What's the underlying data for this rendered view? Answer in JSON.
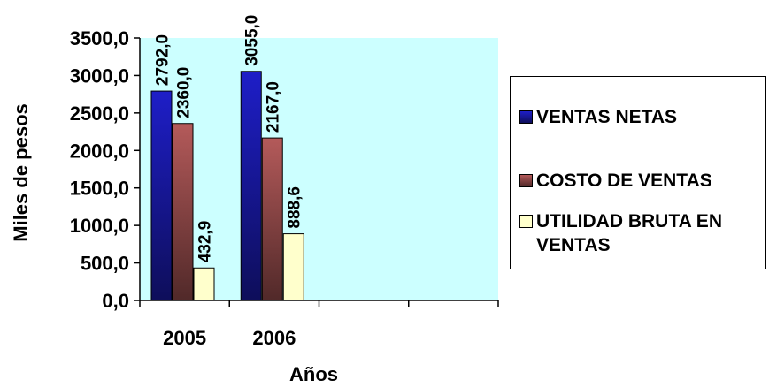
{
  "chart_data": {
    "type": "bar",
    "categories": [
      "2005",
      "2006"
    ],
    "series": [
      {
        "name": "VENTAS NETAS",
        "values": [
          2792.0,
          3055.0
        ],
        "labels": [
          "2792,0",
          "3055,0"
        ],
        "color": "#1e1ec8"
      },
      {
        "name": "COSTO DE VENTAS",
        "values": [
          2360.0,
          2167.0
        ],
        "labels": [
          "2360,0",
          "2167,0"
        ],
        "color": "#b45a5a"
      },
      {
        "name": "UTILIDAD BRUTA EN\nVENTAS",
        "values": [
          432.9,
          888.6
        ],
        "labels": [
          "432,9",
          "888,6"
        ],
        "color": "#ffffcc"
      }
    ],
    "xlabel": "Años",
    "ylabel": "Miles de pesos",
    "ylim": [
      0,
      3500
    ],
    "yticks": [
      {
        "value": 0,
        "label": "0,0"
      },
      {
        "value": 500,
        "label": "500,0"
      },
      {
        "value": 1000,
        "label": "1000,0"
      },
      {
        "value": 1500,
        "label": "1500,0"
      },
      {
        "value": 2000,
        "label": "2000,0"
      },
      {
        "value": 2500,
        "label": "2500,0"
      },
      {
        "value": 3000,
        "label": "3000,0"
      },
      {
        "value": 3500,
        "label": "3500,0"
      }
    ],
    "x_slots": 4,
    "plot_background": "#ccffff",
    "grid": false,
    "legend_position": "right"
  }
}
